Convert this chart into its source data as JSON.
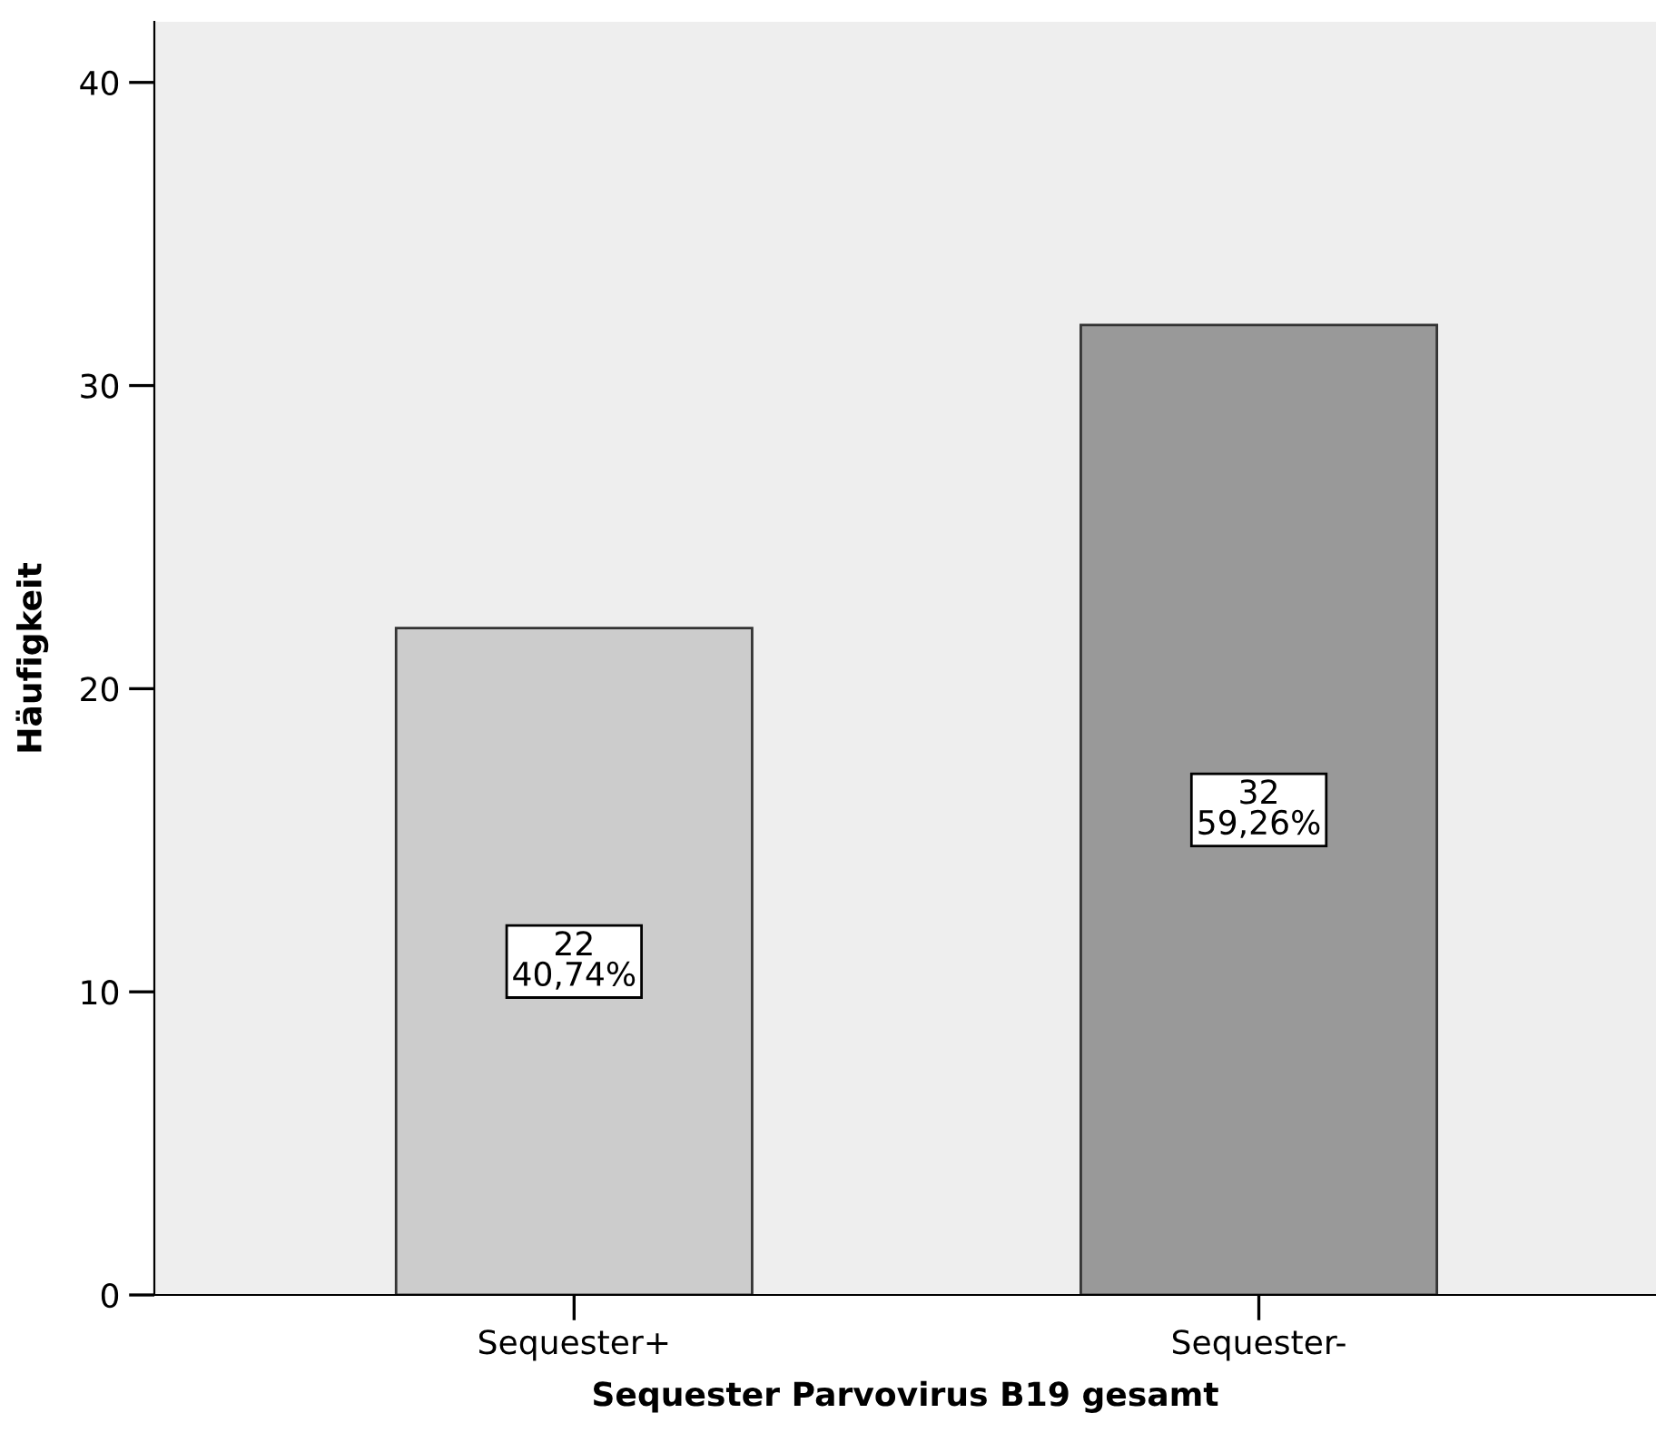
{
  "chart_data": {
    "type": "bar",
    "xlabel": "Sequester Parvovirus B19 gesamt",
    "ylabel": "Häufigkeit",
    "categories": [
      "Sequester+",
      "Sequester-"
    ],
    "values": [
      22,
      32
    ],
    "colors": [
      "#cccccc",
      "#999999"
    ],
    "value_labels": [
      "22\n40,74%",
      "32\n59,26%"
    ],
    "ylim": [
      0,
      42
    ],
    "yticks": [
      0,
      10,
      20,
      30,
      40
    ],
    "grid": false,
    "legend": false
  }
}
